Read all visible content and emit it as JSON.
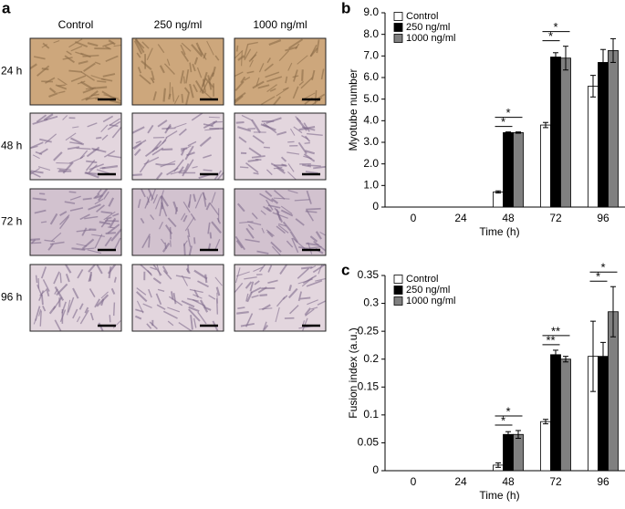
{
  "panel_a": {
    "panel_label": "a",
    "columns": [
      "Control",
      "250 ng/ml",
      "1000 ng/ml"
    ],
    "rows": [
      "24 h",
      "48 h",
      "72 h",
      "96 h"
    ]
  },
  "chart_data": [
    {
      "type": "bar",
      "panel_label": "b",
      "y_label": "Myotube number",
      "x_label": "Time (h)",
      "categories": [
        "0",
        "24",
        "48",
        "72",
        "96"
      ],
      "series": [
        {
          "name": "Control",
          "color": "#ffffff",
          "values": [
            0,
            0,
            0.7,
            3.8,
            5.6
          ],
          "errors": [
            0,
            0,
            0.05,
            0.12,
            0.5
          ]
        },
        {
          "name": "250 ng/ml",
          "color": "#000000",
          "values": [
            0,
            0,
            3.45,
            6.95,
            6.7
          ],
          "errors": [
            0,
            0,
            0.03,
            0.2,
            0.6
          ]
        },
        {
          "name": "1000 ng/ml",
          "color": "#808080",
          "values": [
            0,
            0,
            3.45,
            6.9,
            7.25
          ],
          "errors": [
            0,
            0,
            0.03,
            0.55,
            0.55
          ]
        }
      ],
      "ylim": [
        0,
        9
      ],
      "yticks": [
        0,
        {
          "value": 1,
          "label": "1.0"
        },
        {
          "value": 2,
          "label": "2.0"
        },
        {
          "value": 3,
          "label": "3.0"
        },
        {
          "value": 4,
          "label": "4.0"
        },
        {
          "value": 5,
          "label": "5.0"
        },
        {
          "value": 6,
          "label": "6.0"
        },
        {
          "value": 7,
          "label": "7.0"
        },
        {
          "value": 8,
          "label": "8.0"
        },
        {
          "value": 9,
          "label": "9.0"
        }
      ],
      "legend": "top-left",
      "brackets": [
        {
          "category": "48",
          "pair": [
            "Control",
            "250 ng/ml"
          ],
          "label": "*"
        },
        {
          "category": "48",
          "pair": [
            "Control",
            "1000 ng/ml"
          ],
          "label": "*"
        },
        {
          "category": "72",
          "pair": [
            "Control",
            "250 ng/ml"
          ],
          "label": "*"
        },
        {
          "category": "72",
          "pair": [
            "Control",
            "1000 ng/ml"
          ],
          "label": "*"
        }
      ]
    },
    {
      "type": "bar",
      "panel_label": "c",
      "y_label": "Fusion index (a.u.)",
      "x_label": "Time (h)",
      "categories": [
        "0",
        "24",
        "48",
        "72",
        "96"
      ],
      "series": [
        {
          "name": "Control",
          "color": "#ffffff",
          "values": [
            0,
            0,
            0.01,
            0.088,
            0.205
          ],
          "errors": [
            0,
            0,
            0.004,
            0.004,
            0.063
          ]
        },
        {
          "name": "250 ng/ml",
          "color": "#000000",
          "values": [
            0,
            0,
            0.065,
            0.208,
            0.205
          ],
          "errors": [
            0,
            0,
            0.005,
            0.008,
            0.025
          ]
        },
        {
          "name": "1000 ng/ml",
          "color": "#808080",
          "values": [
            0,
            0,
            0.065,
            0.2,
            0.285
          ],
          "errors": [
            0,
            0,
            0.007,
            0.005,
            0.045
          ]
        }
      ],
      "ylim": [
        0,
        0.35
      ],
      "yticks": [
        0,
        0.05,
        0.1,
        0.15,
        0.2,
        0.25,
        0.3,
        0.35
      ],
      "legend": "top-left",
      "brackets": [
        {
          "category": "48",
          "pair": [
            "Control",
            "250 ng/ml"
          ],
          "label": "*"
        },
        {
          "category": "48",
          "pair": [
            "Control",
            "1000 ng/ml"
          ],
          "label": "*"
        },
        {
          "category": "72",
          "pair": [
            "Control",
            "250 ng/ml"
          ],
          "label": "**"
        },
        {
          "category": "72",
          "pair": [
            "Control",
            "1000 ng/ml"
          ],
          "label": "**"
        },
        {
          "category": "96",
          "pair": [
            "Control",
            "250 ng/ml"
          ],
          "label": "*"
        },
        {
          "category": "96",
          "pair": [
            "Control",
            "1000 ng/ml"
          ],
          "label": "*"
        }
      ]
    }
  ]
}
